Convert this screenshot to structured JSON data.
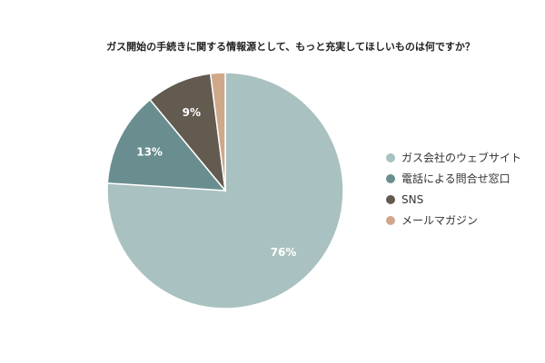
{
  "chart_data": {
    "type": "pie",
    "title": "ガス開始の手続きに関する情報源として、もっと充実してほしいものは何ですか？",
    "slices": [
      {
        "label": "ガス会社のウェブサイト",
        "value": 76,
        "display": "76%",
        "color": "#a9c1c0"
      },
      {
        "label": "電話による問合せ窓口",
        "value": 13,
        "display": "13%",
        "color": "#6a8e90"
      },
      {
        "label": "SNS",
        "value": 9,
        "display": "9%",
        "color": "#635a50"
      },
      {
        "label": "メールマガジン",
        "value": 2,
        "display": "",
        "color": "#cfa88a"
      }
    ],
    "legend_position": "right"
  }
}
